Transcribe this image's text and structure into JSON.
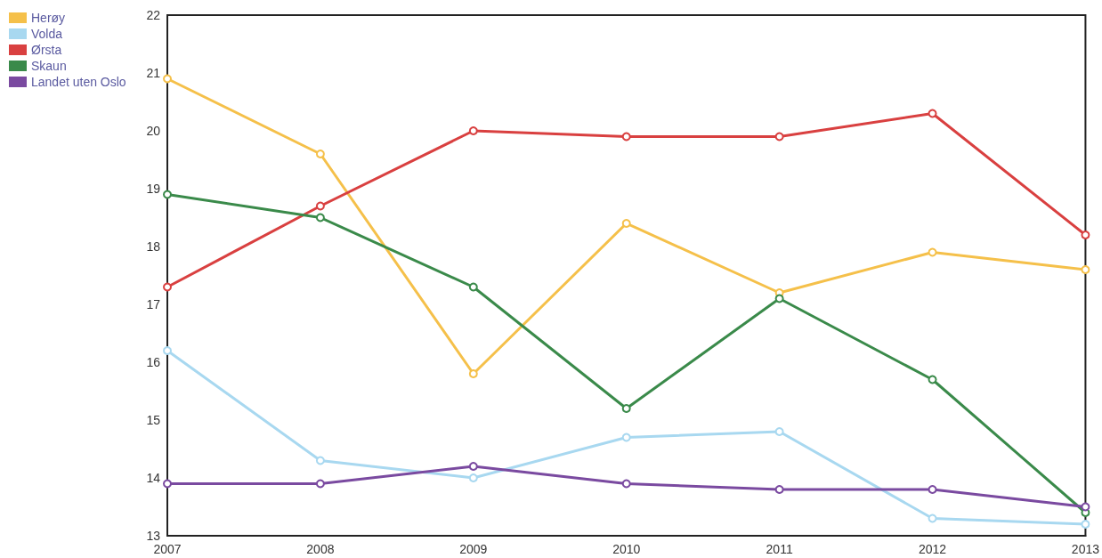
{
  "chart_data": {
    "type": "line",
    "categories": [
      "2007",
      "2008",
      "2009",
      "2010",
      "2011",
      "2012",
      "2013"
    ],
    "ylim": [
      13,
      22
    ],
    "yticks": [
      13,
      14,
      15,
      16,
      17,
      18,
      19,
      20,
      21,
      22
    ],
    "grid": false,
    "legend": "top left",
    "marker": "circle",
    "line_style": "solid",
    "series": [
      {
        "name": "Herøy",
        "color": "#f5c04a",
        "values": [
          20.9,
          19.6,
          15.8,
          18.4,
          17.2,
          17.9,
          17.6
        ]
      },
      {
        "name": "Volda",
        "color": "#a8d8f0",
        "values": [
          16.2,
          14.3,
          14.0,
          14.7,
          14.8,
          13.3,
          13.2
        ]
      },
      {
        "name": "Ørsta",
        "color": "#d94040",
        "values": [
          17.3,
          18.7,
          20.0,
          19.9,
          19.9,
          20.3,
          18.2
        ]
      },
      {
        "name": "Skaun",
        "color": "#3a8a4a",
        "values": [
          18.9,
          18.5,
          17.3,
          15.2,
          17.1,
          15.7,
          13.4
        ]
      },
      {
        "name": "Landet uten Oslo",
        "color": "#7a4aa0",
        "values": [
          13.9,
          13.9,
          14.2,
          13.9,
          13.8,
          13.8,
          13.5
        ]
      }
    ]
  }
}
